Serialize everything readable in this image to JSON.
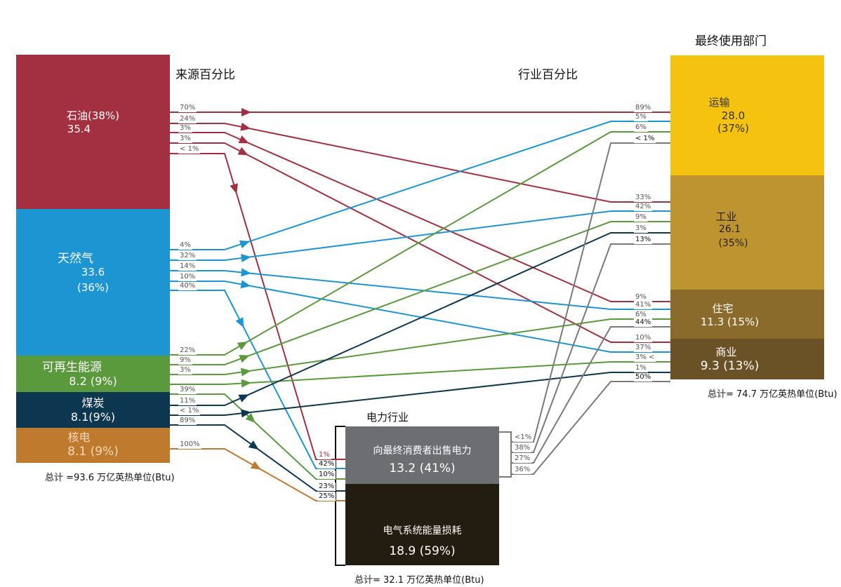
{
  "headers": {
    "source_pct": "来源百分比",
    "sector_pct": "行业百分比",
    "end_use": "最终使用部门",
    "electric": "电力行业"
  },
  "sources": [
    {
      "name": "石油(38%)",
      "value": "35.4",
      "color": "#A23040"
    },
    {
      "name": "天然气",
      "value": "33.6",
      "pct": "(36%)",
      "color": "#1E95D3"
    },
    {
      "name": "可再生能源",
      "value": "8.2 (9%)",
      "color": "#5A9A3C"
    },
    {
      "name": "煤炭",
      "value": "8.1(9%)",
      "color": "#0D3650"
    },
    {
      "name": "核电",
      "value": "8.1 (9%)",
      "color": "#C07A2E"
    }
  ],
  "sectors": [
    {
      "name": "运输",
      "value": "28.0",
      "pct": "(37%)",
      "color": "#F5C20F"
    },
    {
      "name": "工业",
      "value": "26.1",
      "pct": "(35%)",
      "color": "#BE9430"
    },
    {
      "name": "住宅",
      "value": "11.3 (15%)",
      "color": "#8B6B2C"
    },
    {
      "name": "商业",
      "value": "9.3 (13%)",
      "color": "#6B5226"
    }
  ],
  "electric": {
    "sales_label": "向最终消费者出售电力",
    "sales_value": "13.2 (41%)",
    "sales_color": "#6D6E71",
    "loss_label": "电气系统能量损耗",
    "loss_value": "18.9 (59%)",
    "loss_color": "#231C10"
  },
  "flows": [
    {
      "from": "石油",
      "to": "运输",
      "source_pct": "70%",
      "sector_pct": "89%"
    },
    {
      "from": "石油",
      "to": "工业",
      "source_pct": "24%",
      "sector_pct": "33%"
    },
    {
      "from": "石油",
      "to": "住宅",
      "source_pct": "3%",
      "sector_pct": "9%"
    },
    {
      "from": "石油",
      "to": "商业",
      "source_pct": "3%",
      "sector_pct": "10%"
    },
    {
      "from": "石油",
      "to": "电力",
      "source_pct": "< 1%",
      "sector_pct": "1%"
    },
    {
      "from": "天然气",
      "to": "运输",
      "source_pct": "4%",
      "sector_pct": "5%"
    },
    {
      "from": "天然气",
      "to": "工业",
      "source_pct": "32%",
      "sector_pct": "42%"
    },
    {
      "from": "天然气",
      "to": "住宅",
      "source_pct": "14%",
      "sector_pct": "41%"
    },
    {
      "from": "天然气",
      "to": "商业",
      "source_pct": "10%",
      "sector_pct": "37%"
    },
    {
      "from": "天然气",
      "to": "电力",
      "source_pct": "40%",
      "sector_pct": "42%"
    },
    {
      "from": "可再生能源",
      "to": "运输",
      "source_pct": "22%",
      "sector_pct": "6%"
    },
    {
      "from": "可再生能源",
      "to": "工业",
      "source_pct": "9%",
      "sector_pct": "9%"
    },
    {
      "from": "可再生能源",
      "to": "住宅",
      "source_pct": "3%",
      "sector_pct": "6%"
    },
    {
      "from": "可再生能源",
      "to": "商业",
      "source_pct": "",
      "sector_pct": "3% <"
    },
    {
      "from": "可再生能源",
      "to": "电力",
      "source_pct": "39%",
      "sector_pct": "10%"
    },
    {
      "from": "煤炭",
      "to": "工业",
      "source_pct": "11%",
      "sector_pct": "3%"
    },
    {
      "from": "煤炭",
      "to": "商业",
      "source_pct": "< 1%",
      "sector_pct": "1%"
    },
    {
      "from": "煤炭",
      "to": "电力",
      "source_pct": "89%",
      "sector_pct": "23%"
    },
    {
      "from": "核电",
      "to": "电力",
      "source_pct": "100%",
      "sector_pct": "25%"
    },
    {
      "from": "电力",
      "to": "运输",
      "source_pct": "<1%",
      "sector_pct": "< 1%"
    },
    {
      "from": "电力",
      "to": "工业",
      "source_pct": "38%",
      "sector_pct": "13%"
    },
    {
      "from": "电力",
      "to": "住宅",
      "source_pct": "27%",
      "sector_pct": "44%"
    },
    {
      "from": "电力",
      "to": "商业",
      "source_pct": "36%",
      "sector_pct": "50%"
    }
  ],
  "totals": {
    "label": "总计",
    "source": "=93.6 万亿英热单位(Btu)",
    "end_use": "= 74.7 万亿英热单位(Btu)",
    "electric": "= 32.1 万亿英热单位(Btu)"
  }
}
